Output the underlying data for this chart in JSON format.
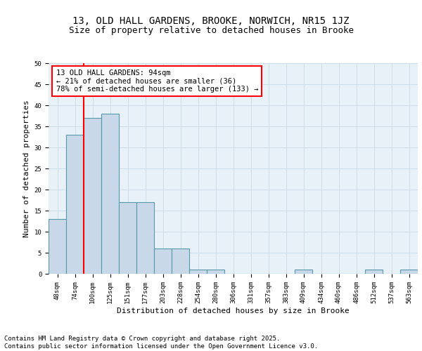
{
  "title1": "13, OLD HALL GARDENS, BROOKE, NORWICH, NR15 1JZ",
  "title2": "Size of property relative to detached houses in Brooke",
  "xlabel": "Distribution of detached houses by size in Brooke",
  "ylabel": "Number of detached properties",
  "categories": [
    "48sqm",
    "74sqm",
    "100sqm",
    "125sqm",
    "151sqm",
    "177sqm",
    "203sqm",
    "228sqm",
    "254sqm",
    "280sqm",
    "306sqm",
    "331sqm",
    "357sqm",
    "383sqm",
    "409sqm",
    "434sqm",
    "460sqm",
    "486sqm",
    "512sqm",
    "537sqm",
    "563sqm"
  ],
  "values": [
    13,
    33,
    37,
    38,
    17,
    17,
    6,
    6,
    1,
    1,
    0,
    0,
    0,
    0,
    1,
    0,
    0,
    0,
    1,
    0,
    1
  ],
  "bar_color": "#c8d8e8",
  "bar_edge_color": "#5599aa",
  "bar_linewidth": 0.8,
  "vline_x": 1.5,
  "vline_color": "red",
  "vline_linewidth": 1.5,
  "annotation_text": "13 OLD HALL GARDENS: 94sqm\n← 21% of detached houses are smaller (36)\n78% of semi-detached houses are larger (133) →",
  "annotation_box_color": "white",
  "annotation_box_edge": "red",
  "grid_color": "#ccdde8",
  "background_color": "#e8f0f8",
  "ylim": [
    0,
    50
  ],
  "yticks": [
    0,
    5,
    10,
    15,
    20,
    25,
    30,
    35,
    40,
    45,
    50
  ],
  "footer_line1": "Contains HM Land Registry data © Crown copyright and database right 2025.",
  "footer_line2": "Contains public sector information licensed under the Open Government Licence v3.0.",
  "title1_fontsize": 10,
  "title2_fontsize": 9,
  "xlabel_fontsize": 8,
  "ylabel_fontsize": 8,
  "tick_fontsize": 6.5,
  "footer_fontsize": 6.5,
  "annotation_fontsize": 7.5
}
